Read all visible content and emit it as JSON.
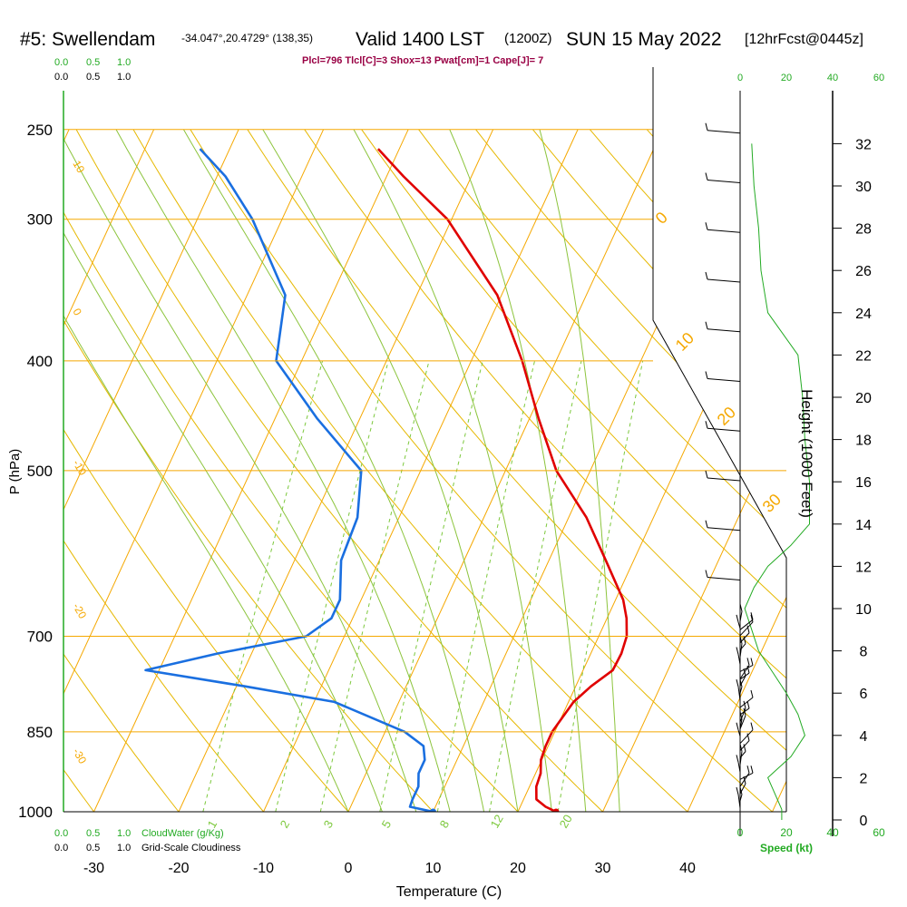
{
  "header": {
    "station": "#5: Swellendam",
    "coords": "-34.047°,20.4729° (138,35)",
    "valid": "Valid 1400 LST",
    "zulu": "(1200Z)",
    "date": "SUN 15 May 2022",
    "fcst": "[12hrFcst@0445z]"
  },
  "indices": "Plcl=796 Tlcl[C]=3 Shox=13 Pwat[cm]=1 Cape[J]= 7",
  "colors": {
    "isotherm": "#f5a800",
    "dry_adiabat": "#e6b800",
    "moist_adiabat": "#8cc43c",
    "mixing_ratio": "#7cc83c",
    "temperature": "#e00000",
    "dewpoint": "#1a6fe0",
    "green_label": "#22aa22",
    "indices": "#990044"
  },
  "chart_data": [
    {
      "type": "line",
      "title": "",
      "xlabel": "Temperature (C)",
      "ylabel": "P (hPa)",
      "pressure_ticks": [
        250,
        300,
        400,
        500,
        700,
        850,
        1000
      ],
      "temperature_ticks": [
        -30,
        -20,
        -10,
        0,
        10,
        20,
        30,
        40
      ],
      "pressure_range": [
        1000,
        250
      ],
      "skew_temperature_range": [
        -34,
        36
      ],
      "log_pressure": true,
      "series": [
        {
          "name": "",
          "color": "#e00000",
          "pressure": [
            1000,
            990,
            975,
            950,
            925,
            900,
            875,
            850,
            800,
            775,
            750,
            725,
            700,
            675,
            650,
            600,
            550,
            500,
            450,
            400,
            350,
            300,
            275,
            260
          ],
          "values": [
            24.5,
            23.0,
            21.5,
            20.8,
            20.6,
            19.9,
            19.7,
            19.7,
            20.6,
            21.8,
            23.5,
            23.6,
            23.3,
            22.3,
            20.9,
            16.7,
            12.1,
            6.0,
            1.1,
            -4.0,
            -10.5,
            -20.5,
            -28.0,
            -32.5
          ]
        },
        {
          "name": "",
          "color": "#1a6fe0",
          "pressure": [
            1000,
            990,
            975,
            950,
            925,
            900,
            875,
            850,
            800,
            775,
            750,
            725,
            700,
            675,
            650,
            600,
            550,
            500,
            450,
            400,
            350,
            300,
            275,
            260
          ],
          "values": [
            10.0,
            7.0,
            6.9,
            6.9,
            6.2,
            6.2,
            5.3,
            2.3,
            -7.6,
            -19.0,
            -31.6,
            -24.0,
            -14.5,
            -12.5,
            -12.5,
            -14.5,
            -14.9,
            -17.0,
            -25.0,
            -33.0,
            -35.5,
            -43.5,
            -49.0,
            -53.5
          ]
        }
      ],
      "markers": [
        {
          "name": "",
          "pressure": 1000,
          "value": 24.5,
          "color": "#e00000"
        },
        {
          "name": "",
          "pressure": 1000,
          "value": 10.0,
          "color": "#1a6fe0"
        }
      ],
      "dry_adiabat_labels": [
        "-10",
        "0",
        "10",
        "20",
        "30"
      ],
      "saturated_adiabat_labels": [
        "0",
        "10",
        "20",
        "30"
      ],
      "mixing_ratio_labels": [
        "1",
        "2",
        "3",
        "5",
        "8",
        "12",
        "20"
      ],
      "left_axis_labels": [
        "10",
        "0",
        "-10",
        "-20",
        "-30"
      ]
    },
    {
      "type": "line",
      "title": "Speed (kt)",
      "xlim": [
        0,
        60
      ],
      "x_ticks": [
        "0",
        "20",
        "40",
        "60"
      ],
      "height_ticks_kft": [
        0,
        2,
        4,
        6,
        8,
        10,
        12,
        14,
        16,
        18,
        20,
        22,
        24,
        26,
        28,
        30,
        32
      ],
      "height_axis_label": "Height (1000 Feet)",
      "series": [
        {
          "name": "",
          "color": "#22aa22",
          "height_kft": [
            0,
            0.5,
            1,
            2,
            3,
            4,
            5,
            6,
            7,
            8,
            9,
            10,
            11,
            12,
            13,
            14,
            16,
            18,
            20,
            22,
            24,
            26,
            28,
            30,
            32
          ],
          "values": [
            18,
            18,
            16,
            12,
            22,
            28,
            25,
            20,
            14,
            8,
            5,
            2,
            6,
            12,
            22,
            30,
            30,
            28,
            27,
            25,
            12,
            9,
            8,
            6,
            5
          ]
        }
      ],
      "barb_count": 40
    }
  ],
  "cloud_axes": {
    "top_green": [
      "0.0",
      "0.5",
      "1.0"
    ],
    "top_black": [
      "0.0",
      "0.5",
      "1.0"
    ],
    "bottom_green": [
      "0.0",
      "0.5",
      "1.0"
    ],
    "bottom_black": [
      "0.0",
      "0.5",
      "1.0"
    ],
    "cloud_water_label": "CloudWater (g/Kg)",
    "cloudiness_label": "Grid-Scale Cloudiness",
    "speed_top_ticks": [
      "0",
      "20",
      "40",
      "60"
    ]
  }
}
